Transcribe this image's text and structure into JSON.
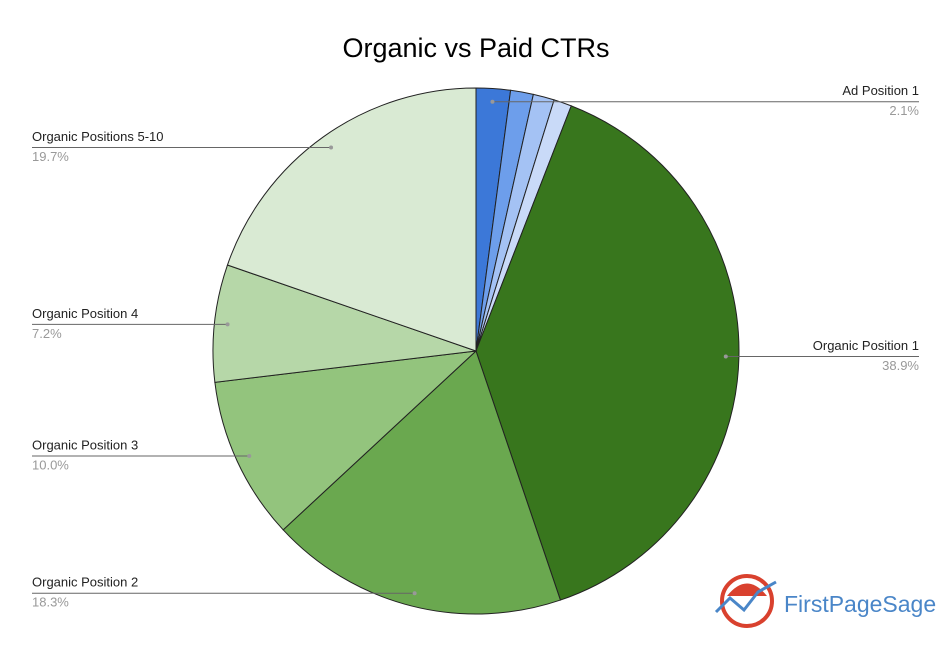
{
  "chart_data": {
    "type": "pie",
    "title": "Organic vs Paid CTRs",
    "categories": [
      "Ad Position 1",
      null,
      null,
      null,
      "Organic Position 1",
      "Organic Position 2",
      "Organic Position 3",
      "Organic Position 4",
      "Organic Positions 5-10"
    ],
    "values": [
      2.1,
      1.4,
      1.3,
      1.1,
      38.9,
      18.3,
      10.0,
      7.2,
      19.7
    ],
    "value_labels": [
      "2.1%",
      null,
      null,
      null,
      "38.9%",
      "18.3%",
      "10.0%",
      "7.2%",
      "19.7%"
    ],
    "colors": [
      "#3c78d8",
      "#6d9eeb",
      "#a4c2f4",
      "#c9daf8",
      "#38761d",
      "#6aa84f",
      "#93c47d",
      "#b6d7a8",
      "#d9ead3"
    ]
  },
  "logo": "FirstPageSage"
}
